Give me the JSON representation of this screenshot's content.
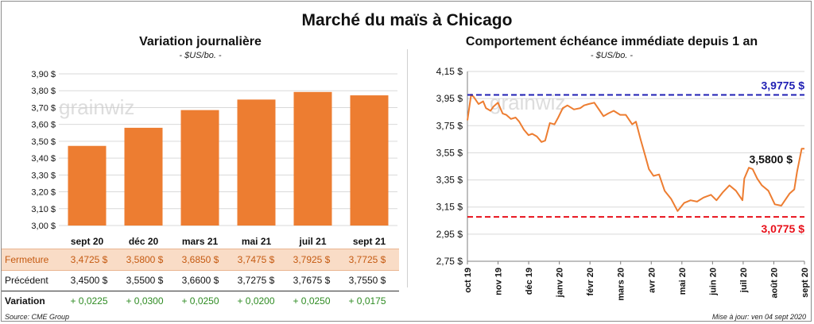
{
  "title": "Marché du maïs à Chicago",
  "left_panel": {
    "title": "Variation journalière",
    "unit": "- $US/bo. -"
  },
  "right_panel": {
    "title": "Comportement échéance immédiate depuis 1 an",
    "unit": "- $US/bo. -"
  },
  "watermark": "grainwiz",
  "table": {
    "rows": [
      {
        "label": "Fermeture",
        "values": [
          "3,4725  $",
          "3,5800  $",
          "3,6850  $",
          "3,7475  $",
          "3,7925  $",
          "3,7725  $"
        ]
      },
      {
        "label": "Précédent",
        "values": [
          "3,4500  $",
          "3,5500  $",
          "3,6600  $",
          "3,7275  $",
          "3,7675  $",
          "3,7550  $"
        ]
      },
      {
        "label": "Variation",
        "values": [
          "+ 0,0225",
          "+ 0,0300",
          "+ 0,0250",
          "+ 0,0200",
          "+ 0,0250",
          "+ 0,0175"
        ]
      }
    ]
  },
  "footer": {
    "source": "Source: CME Group",
    "updated": "Mise à jour: ven 04 sept 2020"
  },
  "colors": {
    "bar": "#ed7d31",
    "line": "#ed7d31",
    "high": "#1f1fb4",
    "low": "#e8101a",
    "grid": "#d9d9d9"
  },
  "chart_data": [
    {
      "type": "bar",
      "categories": [
        "sept 20",
        "déc 20",
        "mars 21",
        "mai 21",
        "juil 21",
        "sept 21"
      ],
      "values": [
        3.4725,
        3.58,
        3.685,
        3.7475,
        3.7925,
        3.7725
      ],
      "y_ticks": [
        "3,00 $",
        "3,10 $",
        "3,20 $",
        "3,30 $",
        "3,40 $",
        "3,50 $",
        "3,60 $",
        "3,70 $",
        "3,80 $",
        "3,90 $"
      ],
      "ylim": [
        3.0,
        3.9
      ],
      "grid": true
    },
    {
      "type": "line",
      "x_ticks": [
        "oct 19",
        "nov 19",
        "déc 19",
        "janv 20",
        "févr 20",
        "mars 20",
        "avr 20",
        "mai 20",
        "juin 20",
        "juil 20",
        "août 20",
        "sept 20"
      ],
      "y_ticks": [
        "2,75 $",
        "2,95 $",
        "3,15 $",
        "3,35 $",
        "3,55 $",
        "3,75 $",
        "3,95 $",
        "4,15 $"
      ],
      "ylim": [
        2.75,
        4.15
      ],
      "grid": true,
      "series": [
        {
          "x": [
            "2019-09-06",
            "2019-09-10",
            "2019-09-13",
            "2019-09-18",
            "2019-09-23",
            "2019-09-26",
            "2019-10-01",
            "2019-10-04",
            "2019-10-09",
            "2019-10-14",
            "2019-10-18",
            "2019-10-23",
            "2019-10-28",
            "2019-11-01",
            "2019-11-06",
            "2019-11-11",
            "2019-11-15",
            "2019-11-20",
            "2019-11-25",
            "2019-11-29",
            "2019-12-04",
            "2019-12-09",
            "2019-12-13",
            "2019-12-18",
            "2019-12-23",
            "2019-12-30",
            "2020-01-06",
            "2020-01-10",
            "2020-01-15",
            "2020-01-21",
            "2020-01-27",
            "2020-01-31",
            "2020-02-05",
            "2020-02-11",
            "2020-02-18",
            "2020-02-24",
            "2020-03-02",
            "2020-03-06",
            "2020-03-11",
            "2020-03-16",
            "2020-03-20",
            "2020-03-25",
            "2020-03-31",
            "2020-04-06",
            "2020-04-13",
            "2020-04-20",
            "2020-04-27",
            "2020-05-04",
            "2020-05-11",
            "2020-05-18",
            "2020-05-26",
            "2020-06-01",
            "2020-06-08",
            "2020-06-15",
            "2020-06-22",
            "2020-06-29",
            "2020-07-01",
            "2020-07-06",
            "2020-07-10",
            "2020-07-15",
            "2020-07-20",
            "2020-07-27",
            "2020-08-03",
            "2020-08-10",
            "2020-08-14",
            "2020-08-19",
            "2020-08-24",
            "2020-08-27",
            "2020-09-01",
            "2020-09-04"
          ],
          "y": [
            3.79,
            3.98,
            3.96,
            3.91,
            3.93,
            3.88,
            3.86,
            3.89,
            3.92,
            3.84,
            3.83,
            3.8,
            3.81,
            3.78,
            3.72,
            3.68,
            3.69,
            3.67,
            3.63,
            3.64,
            3.77,
            3.76,
            3.81,
            3.88,
            3.9,
            3.87,
            3.88,
            3.9,
            3.91,
            3.92,
            3.86,
            3.82,
            3.84,
            3.86,
            3.83,
            3.83,
            3.76,
            3.78,
            3.65,
            3.53,
            3.43,
            3.38,
            3.39,
            3.27,
            3.21,
            3.12,
            3.18,
            3.2,
            3.19,
            3.22,
            3.24,
            3.2,
            3.26,
            3.31,
            3.27,
            3.2,
            3.36,
            3.44,
            3.43,
            3.36,
            3.31,
            3.27,
            3.17,
            3.16,
            3.2,
            3.25,
            3.28,
            3.41,
            3.58,
            3.58
          ]
        }
      ],
      "reference_lines": [
        {
          "value": 3.9775,
          "label": "3,9775 $"
        },
        {
          "value": 3.0775,
          "label": "3,0775 $"
        }
      ],
      "last_value_label": "3,5800 $"
    }
  ]
}
